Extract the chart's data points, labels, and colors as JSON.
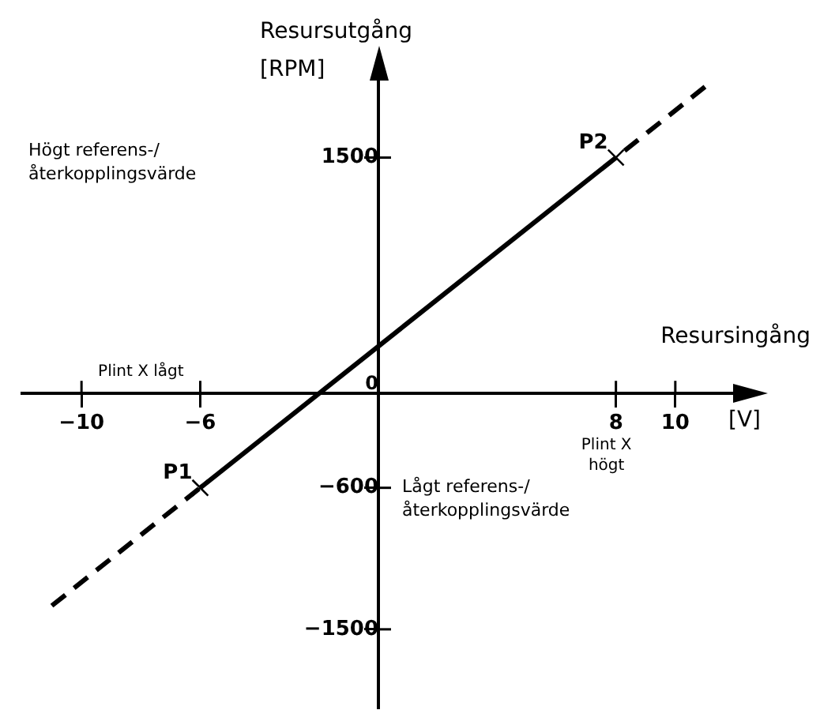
{
  "chart_data": {
    "type": "line",
    "xlabel": "Resursingång",
    "ylabel": "Resursutgång [RPM]",
    "series": [
      {
        "x": [
          -6,
          8
        ],
        "values": [
          -600,
          1500
        ],
        "color": "#000000",
        "line_style": "solid",
        "marker": "cross"
      },
      {
        "x": [
          11,
          8
        ],
        "values": [
          1950,
          1500
        ],
        "color": "#000000",
        "line_style": "dashed",
        "marker": "none"
      },
      {
        "x": [
          -11,
          -6
        ],
        "values": [
          -1350,
          -600
        ],
        "color": "#000000",
        "line_style": "dashed",
        "marker": "none"
      }
    ],
    "xlim": [
      -12,
      12
    ],
    "ylim": [
      -2000,
      2000
    ],
    "xticks": [
      {
        "value": -10,
        "label": "−10"
      },
      {
        "value": -6,
        "label": "−6"
      },
      8,
      10
    ],
    "yticks": [
      1500,
      0,
      {
        "value": -600,
        "label": "−600"
      },
      {
        "value": -1500,
        "label": "−1500"
      }
    ],
    "annotations": [
      "Plint X lågt",
      "Plint X högt",
      "Högt referens-/återkopplingsvärde",
      "Lågt referens-/återkopplingsvärde",
      "[V]",
      {
        "text": "P1",
        "x": -6,
        "y": -600
      },
      {
        "text": "P2",
        "x": 8,
        "y": 1500
      }
    ]
  }
}
